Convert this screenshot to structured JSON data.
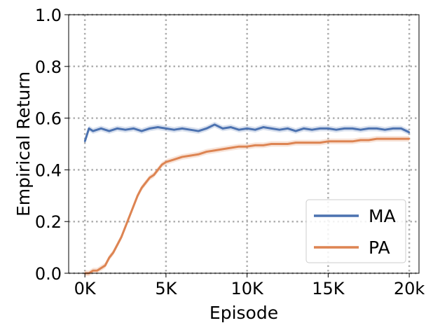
{
  "chart_data": {
    "type": "line",
    "xlabel": "Episode",
    "ylabel": "Empirical Return",
    "xlim": [
      -1000,
      20600
    ],
    "ylim": [
      0.0,
      1.0
    ],
    "xticks": [
      0,
      5000,
      10000,
      15000,
      20000
    ],
    "xtick_labels": [
      "0K",
      "5K",
      "10K",
      "15K",
      "20k"
    ],
    "yticks": [
      0.0,
      0.2,
      0.4,
      0.6,
      0.8,
      1.0
    ],
    "ytick_labels": [
      "0.0",
      "0.2",
      "0.4",
      "0.6",
      "0.8",
      "1.0"
    ],
    "grid": true,
    "legend_position": "lower-right",
    "series": [
      {
        "name": "MA",
        "color": "#4c72b0",
        "x": [
          0,
          250,
          500,
          1000,
          1500,
          2000,
          2500,
          3000,
          3500,
          4000,
          4500,
          5000,
          5500,
          6000,
          6500,
          7000,
          7500,
          8000,
          8500,
          9000,
          9500,
          10000,
          10500,
          11000,
          11500,
          12000,
          12500,
          13000,
          13500,
          14000,
          14500,
          15000,
          15500,
          16000,
          16500,
          17000,
          17500,
          18000,
          18500,
          19000,
          19500,
          20000
        ],
        "y": [
          0.51,
          0.56,
          0.55,
          0.56,
          0.55,
          0.56,
          0.555,
          0.56,
          0.55,
          0.56,
          0.565,
          0.56,
          0.555,
          0.56,
          0.555,
          0.55,
          0.56,
          0.575,
          0.56,
          0.565,
          0.555,
          0.56,
          0.555,
          0.565,
          0.56,
          0.555,
          0.56,
          0.55,
          0.56,
          0.555,
          0.56,
          0.56,
          0.555,
          0.56,
          0.56,
          0.555,
          0.56,
          0.56,
          0.555,
          0.56,
          0.56,
          0.545
        ]
      },
      {
        "name": "PA",
        "color": "#dd8452",
        "x": [
          0,
          250,
          500,
          750,
          1000,
          1250,
          1500,
          1750,
          2000,
          2250,
          2500,
          2750,
          3000,
          3250,
          3500,
          3750,
          4000,
          4250,
          4500,
          4750,
          5000,
          5500,
          6000,
          6500,
          7000,
          7500,
          8000,
          8500,
          9000,
          9500,
          10000,
          10500,
          11000,
          11500,
          12000,
          12500,
          13000,
          13500,
          14000,
          14500,
          15000,
          15500,
          16000,
          16500,
          17000,
          17500,
          18000,
          18500,
          19000,
          19500,
          20000
        ],
        "y": [
          0.0,
          0.0,
          0.01,
          0.01,
          0.02,
          0.03,
          0.06,
          0.08,
          0.11,
          0.14,
          0.18,
          0.22,
          0.26,
          0.3,
          0.33,
          0.35,
          0.37,
          0.38,
          0.4,
          0.42,
          0.43,
          0.44,
          0.45,
          0.455,
          0.46,
          0.47,
          0.475,
          0.48,
          0.485,
          0.49,
          0.49,
          0.495,
          0.495,
          0.5,
          0.5,
          0.5,
          0.505,
          0.505,
          0.505,
          0.505,
          0.51,
          0.51,
          0.51,
          0.51,
          0.515,
          0.515,
          0.52,
          0.52,
          0.52,
          0.52,
          0.52
        ]
      }
    ]
  }
}
